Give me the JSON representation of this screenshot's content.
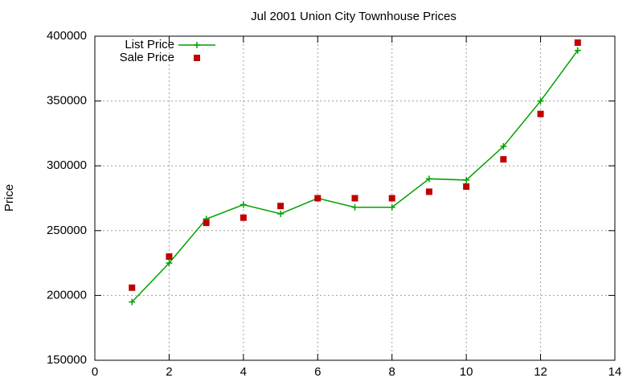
{
  "chart_data": {
    "type": "line",
    "title": "Jul 2001 Union City Townhouse Prices",
    "ylabel": "Price",
    "x": [
      1,
      2,
      3,
      4,
      5,
      6,
      7,
      8,
      9,
      10,
      11,
      12,
      13
    ],
    "series": [
      {
        "name": "List Price",
        "color": "#00a000",
        "marker": "plus",
        "line": true,
        "values": [
          195000,
          225000,
          259000,
          270000,
          263000,
          275000,
          268000,
          268000,
          290000,
          289000,
          315000,
          350000,
          389000
        ]
      },
      {
        "name": "Sale Price",
        "color": "#c00000",
        "marker": "square",
        "line": false,
        "values": [
          206000,
          230000,
          256000,
          260000,
          269000,
          275000,
          275000,
          275000,
          280000,
          284000,
          305000,
          340000,
          395000
        ]
      }
    ],
    "xlim": [
      0,
      14
    ],
    "xticks": [
      0,
      2,
      4,
      6,
      8,
      10,
      12,
      14
    ],
    "ylim": [
      150000,
      400000
    ],
    "yticks": [
      150000,
      200000,
      250000,
      300000,
      350000,
      400000
    ],
    "grid": true,
    "legend": "top-left"
  }
}
